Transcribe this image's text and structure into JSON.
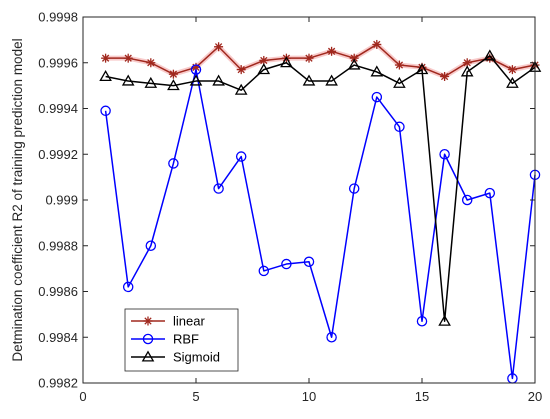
{
  "chart_data": {
    "type": "line",
    "title": "",
    "xlabel": "",
    "ylabel": "Detmination coefficient R2 of training prediction model",
    "xlim": [
      0,
      20
    ],
    "ylim": [
      0.9982,
      0.9998
    ],
    "x_ticks": [
      0,
      5,
      10,
      15,
      20
    ],
    "x_tick_labels": [
      "0",
      "5",
      "10",
      "15",
      "20"
    ],
    "y_ticks": [
      0.9982,
      0.9984,
      0.9986,
      0.9988,
      0.999,
      0.9992,
      0.9994,
      0.9996,
      0.9998
    ],
    "y_tick_labels": [
      "0.9982",
      "0.9984",
      "0.9986",
      "0.9988",
      "0.999",
      "0.9992",
      "0.9994",
      "0.9996",
      "0.9998"
    ],
    "grid": false,
    "legend_position": "lower-left",
    "x": [
      1,
      2,
      3,
      4,
      5,
      6,
      7,
      8,
      9,
      10,
      11,
      12,
      13,
      14,
      15,
      16,
      17,
      18,
      19,
      20
    ],
    "series": [
      {
        "name": "linear",
        "color": "#a0281e",
        "marker": "asterisk",
        "values": [
          0.99962,
          0.99962,
          0.9996,
          0.99955,
          0.99958,
          0.99967,
          0.99957,
          0.99961,
          0.99962,
          0.99962,
          0.99965,
          0.99962,
          0.99968,
          0.99959,
          0.99958,
          0.99954,
          0.9996,
          0.99962,
          0.99957,
          0.99959
        ]
      },
      {
        "name": "RBF",
        "color": "#0000ff",
        "marker": "circle",
        "values": [
          0.99939,
          0.99862,
          0.9988,
          0.99916,
          0.99957,
          0.99905,
          0.99919,
          0.99869,
          0.99872,
          0.99873,
          0.9984,
          0.99905,
          0.99945,
          0.99932,
          0.99847,
          0.9992,
          0.999,
          0.99903,
          0.99822,
          0.99911
        ]
      },
      {
        "name": "Sigmoid",
        "color": "#000000",
        "marker": "triangle",
        "values": [
          0.99954,
          0.99952,
          0.99951,
          0.9995,
          0.99952,
          0.99952,
          0.99948,
          0.99957,
          0.9996,
          0.99952,
          0.99952,
          0.99959,
          0.99956,
          0.99951,
          0.99957,
          0.99847,
          0.99956,
          0.99963,
          0.99951,
          0.99958
        ]
      }
    ]
  }
}
